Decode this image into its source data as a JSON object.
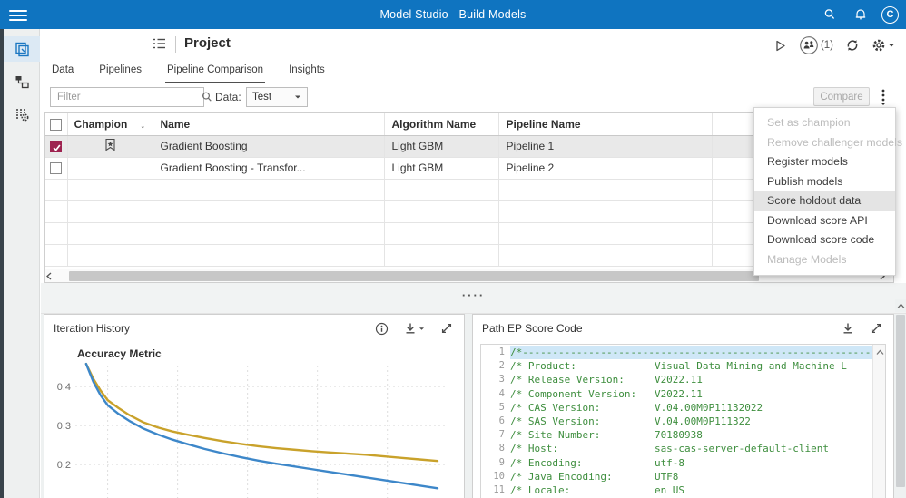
{
  "app": {
    "title": "Model Studio - Build Models",
    "avatar_letter": "C"
  },
  "colors": {
    "topbar_blue": "#0f74c0",
    "accent_blue": "#0f74c0",
    "checkbox_crimson": "#9e2350",
    "code_green": "#3e8e3e",
    "code_highlight": "#cfe7f7",
    "line_gold": "#c9a22b",
    "line_blue": "#3d87c9"
  },
  "sidebar": {
    "items": [
      {
        "icon": "projects-icon",
        "active": true
      },
      {
        "icon": "pipelines-icon",
        "active": false
      },
      {
        "icon": "data-exchange-icon",
        "active": false
      }
    ]
  },
  "project": {
    "title": "Project",
    "collab_count": "(1)"
  },
  "tabs": [
    {
      "label": "Data",
      "active": false
    },
    {
      "label": "Pipelines",
      "active": false
    },
    {
      "label": "Pipeline Comparison",
      "active": true
    },
    {
      "label": "Insights",
      "active": false
    }
  ],
  "filter": {
    "placeholder": "Filter",
    "data_label": "Data:",
    "data_value": "Test"
  },
  "compare": {
    "label": "Compare"
  },
  "glyphs": {
    "sort_desc": "↓",
    "splitter_handle": "····"
  },
  "table": {
    "columns": [
      "",
      "Champion",
      "Name",
      "Algorithm Name",
      "Pipeline Name",
      "",
      ""
    ],
    "rows": [
      {
        "checked": true,
        "champion": true,
        "name": "Gradient Boosting",
        "algorithm": "Light GBM",
        "pipeline": "Pipeline 1",
        "selected": true
      },
      {
        "checked": false,
        "champion": false,
        "name": "Gradient Boosting - Transfor...",
        "algorithm": "Light GBM",
        "pipeline": "Pipeline 2",
        "selected": false
      }
    ],
    "empty_row_count": 4
  },
  "context_menu": {
    "items": [
      {
        "label": "Set as champion",
        "state": "disabled"
      },
      {
        "label": "Remove challenger models",
        "state": "disabled"
      },
      {
        "label": "Register models",
        "state": "normal"
      },
      {
        "label": "Publish models",
        "state": "normal"
      },
      {
        "label": "Score holdout data",
        "state": "highlighted"
      },
      {
        "label": "Download score API",
        "state": "normal"
      },
      {
        "label": "Download score code",
        "state": "normal"
      },
      {
        "label": "Manage Models",
        "state": "disabled"
      }
    ]
  },
  "panels": {
    "iteration_history": {
      "title": "Iteration History"
    },
    "score_code": {
      "title": "Path EP Score Code",
      "lines": [
        {
          "num": 1,
          "text": "/*---------------------------------------------------------------------------"
        },
        {
          "num": 2,
          "text": "/* Product:             Visual Data Mining and Machine L"
        },
        {
          "num": 3,
          "text": "/* Release Version:     V2022.11"
        },
        {
          "num": 4,
          "text": "/* Component Version:   V2022.11"
        },
        {
          "num": 5,
          "text": "/* CAS Version:         V.04.00M0P11132022"
        },
        {
          "num": 6,
          "text": "/* SAS Version:         V.04.00M0P111322"
        },
        {
          "num": 7,
          "text": "/* Site Number:         70180938"
        },
        {
          "num": 8,
          "text": "/* Host:                sas-cas-server-default-client"
        },
        {
          "num": 9,
          "text": "/* Encoding:            utf-8"
        },
        {
          "num": 10,
          "text": "/* Java Encoding:       UTF8"
        },
        {
          "num": 11,
          "text": "/* Locale:              en US"
        }
      ]
    }
  },
  "chart_data": {
    "type": "line",
    "title": "Accuracy Metric",
    "xlabel": "",
    "ylabel": "Accuracy Metric",
    "ylim": [
      0.13,
      0.46
    ],
    "yticks": [
      0.2,
      0.3,
      0.4
    ],
    "grid": true,
    "legend": "none",
    "x": [
      2,
      4,
      6,
      8,
      11,
      14,
      18,
      22,
      26,
      30,
      35,
      40,
      45,
      50,
      55,
      60,
      65,
      70,
      75,
      80,
      85,
      90,
      95,
      100
    ],
    "series": [
      {
        "name": "gold",
        "color": "#c9a22b",
        "values": [
          0.458,
          0.42,
          0.39,
          0.365,
          0.345,
          0.327,
          0.308,
          0.295,
          0.285,
          0.277,
          0.268,
          0.26,
          0.253,
          0.247,
          0.242,
          0.238,
          0.234,
          0.231,
          0.228,
          0.225,
          0.221,
          0.217,
          0.213,
          0.209
        ]
      },
      {
        "name": "blue",
        "color": "#3d87c9",
        "values": [
          0.458,
          0.412,
          0.378,
          0.352,
          0.33,
          0.312,
          0.292,
          0.277,
          0.264,
          0.253,
          0.24,
          0.229,
          0.219,
          0.21,
          0.202,
          0.195,
          0.188,
          0.181,
          0.174,
          0.167,
          0.16,
          0.153,
          0.146,
          0.139
        ]
      }
    ],
    "layout": {
      "x_gridlines_pct": [
        8,
        27.5,
        47,
        66.5,
        86
      ]
    }
  }
}
